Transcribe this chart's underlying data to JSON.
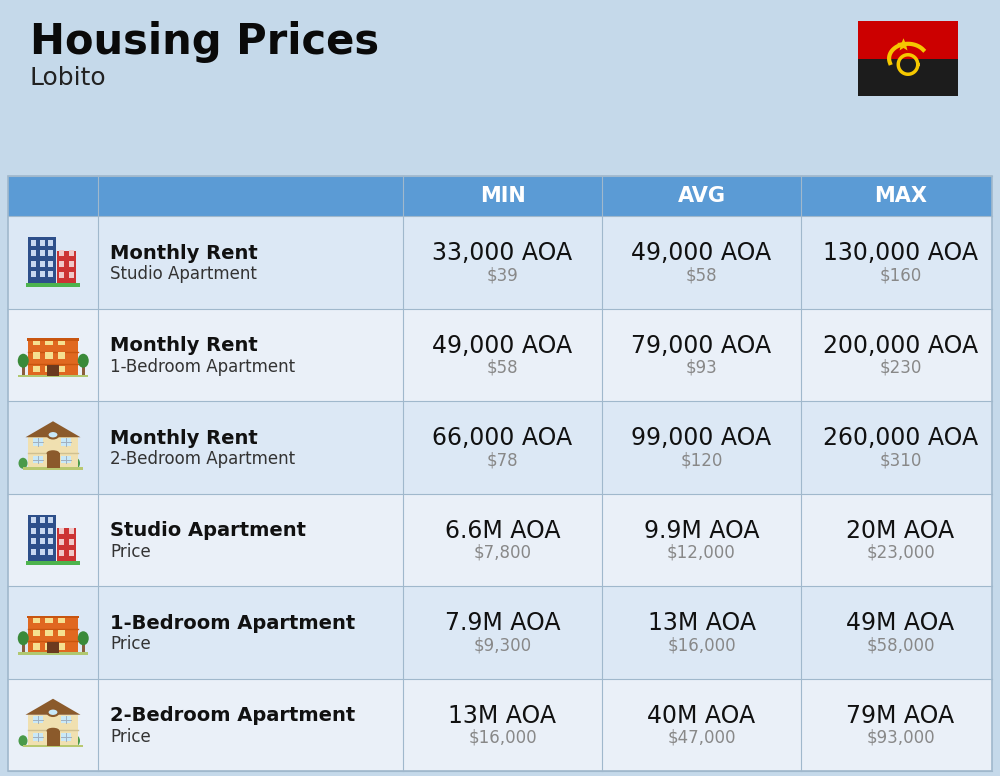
{
  "title": "Housing Prices",
  "subtitle": "Lobito",
  "background_color": "#c5d9ea",
  "header_bg_color": "#5b9bd5",
  "header_text_color": "#ffffff",
  "row_bg_color_1": "#dce8f5",
  "row_bg_color_2": "#eaf0f8",
  "col_header_labels": [
    "MIN",
    "AVG",
    "MAX"
  ],
  "rows": [
    {
      "icon": "studio_blue",
      "label_bold": "Monthly Rent",
      "label_sub": "Studio Apartment",
      "min_aoa": "33,000 AOA",
      "min_usd": "$39",
      "avg_aoa": "49,000 AOA",
      "avg_usd": "$58",
      "max_aoa": "130,000 AOA",
      "max_usd": "$160"
    },
    {
      "icon": "apt_orange",
      "label_bold": "Monthly Rent",
      "label_sub": "1-Bedroom Apartment",
      "min_aoa": "49,000 AOA",
      "min_usd": "$58",
      "avg_aoa": "79,000 AOA",
      "avg_usd": "$93",
      "max_aoa": "200,000 AOA",
      "max_usd": "$230"
    },
    {
      "icon": "apt_house",
      "label_bold": "Monthly Rent",
      "label_sub": "2-Bedroom Apartment",
      "min_aoa": "66,000 AOA",
      "min_usd": "$78",
      "avg_aoa": "99,000 AOA",
      "avg_usd": "$120",
      "max_aoa": "260,000 AOA",
      "max_usd": "$310"
    },
    {
      "icon": "studio_blue",
      "label_bold": "Studio Apartment",
      "label_sub": "Price",
      "min_aoa": "6.6M AOA",
      "min_usd": "$7,800",
      "avg_aoa": "9.9M AOA",
      "avg_usd": "$12,000",
      "max_aoa": "20M AOA",
      "max_usd": "$23,000"
    },
    {
      "icon": "apt_orange",
      "label_bold": "1-Bedroom Apartment",
      "label_sub": "Price",
      "min_aoa": "7.9M AOA",
      "min_usd": "$9,300",
      "avg_aoa": "13M AOA",
      "avg_usd": "$16,000",
      "max_aoa": "49M AOA",
      "max_usd": "$58,000"
    },
    {
      "icon": "apt_house",
      "label_bold": "2-Bedroom Apartment",
      "label_sub": "Price",
      "min_aoa": "13M AOA",
      "min_usd": "$16,000",
      "avg_aoa": "40M AOA",
      "avg_usd": "$47,000",
      "max_aoa": "79M AOA",
      "max_usd": "$93,000"
    }
  ],
  "title_fontsize": 30,
  "subtitle_fontsize": 18,
  "header_fontsize": 15,
  "aoa_fontsize": 17,
  "usd_fontsize": 12,
  "label_bold_fontsize": 14,
  "label_sub_fontsize": 12
}
